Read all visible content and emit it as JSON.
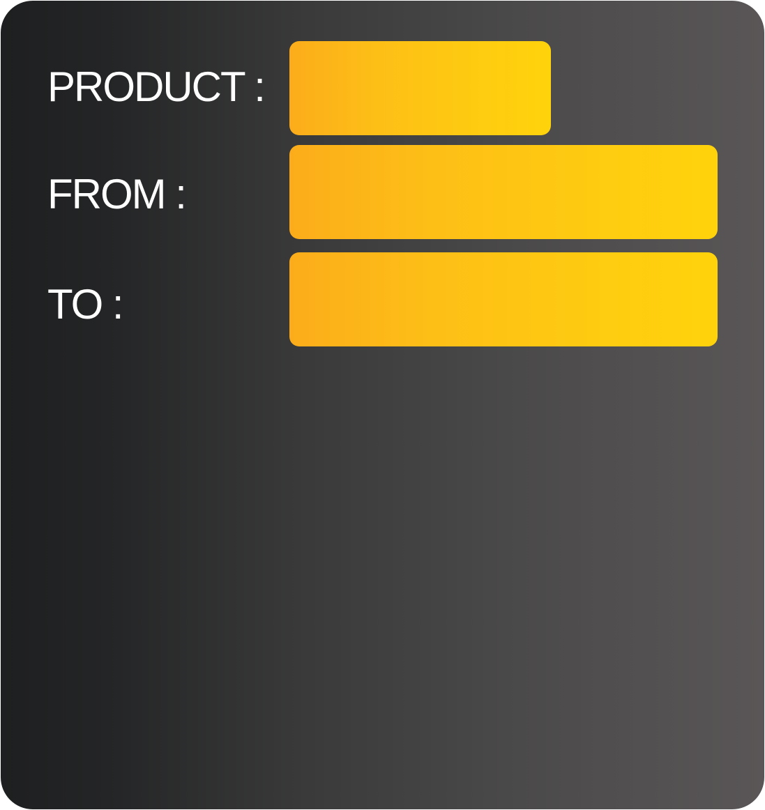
{
  "form": {
    "product": {
      "label": "PRODUCT :",
      "value": ""
    },
    "from": {
      "label": "FROM :",
      "value": ""
    },
    "to": {
      "label": "TO :",
      "value": ""
    }
  },
  "colors": {
    "background_dark": "#1e1f20",
    "background_light": "#5a5657",
    "field_start": "#fcac1a",
    "field_end": "#ffd30c",
    "label_text": "#ffffff"
  }
}
